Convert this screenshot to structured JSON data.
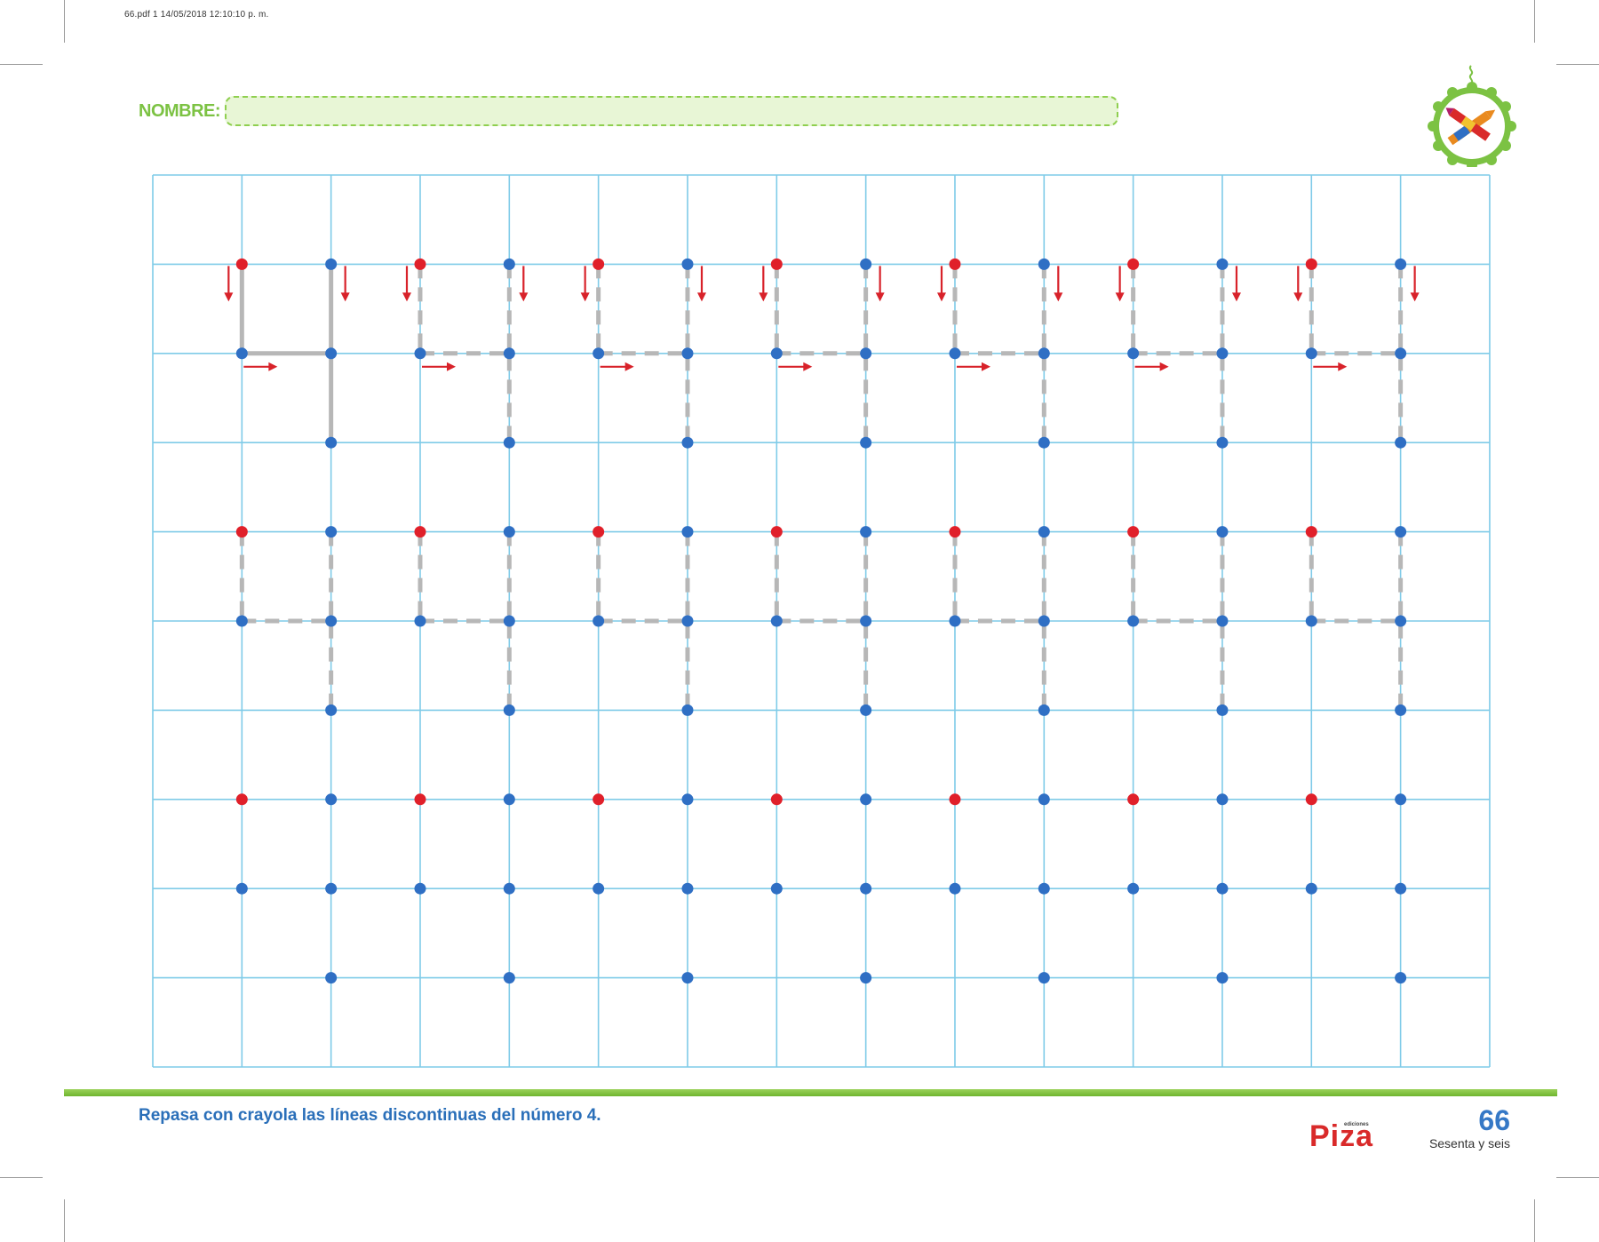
{
  "print_meta": "66.pdf   1   14/05/2018   12:10:10 p. m.",
  "header": {
    "name_label": "NOMBRE:",
    "badge_icon": "crayons-icon"
  },
  "colors": {
    "grid_line": "#7fcbe8",
    "start_dot": "#e0202a",
    "dot": "#2f6fc4",
    "trace": "#b7b7b7",
    "arrow": "#d8222a",
    "accent_green": "#7cc243"
  },
  "worksheet": {
    "columns": 15,
    "rows": 10,
    "digit": "4",
    "digits_per_row": 7,
    "digit_rows": 3,
    "first_digit_solid": true
  },
  "footer": {
    "instruction": "Repasa con crayola las líneas discontinuas del número 4.",
    "brand_small": "ediciones",
    "brand": "Piza",
    "page_number": "66",
    "page_words": "Sesenta y seis"
  }
}
